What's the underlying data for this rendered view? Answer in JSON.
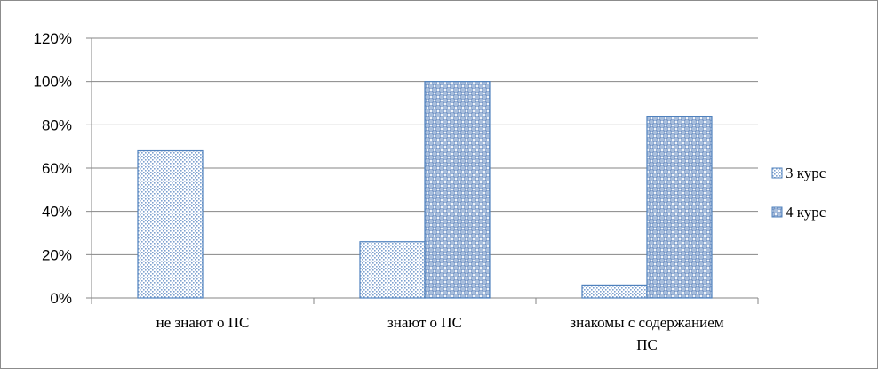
{
  "chart_data": {
    "type": "bar",
    "categories": [
      [
        "не знают о ПС"
      ],
      [
        "знают о ПС"
      ],
      [
        "знакомы с содержанием",
        "ПС"
      ]
    ],
    "series": [
      {
        "name": "3 курс",
        "values": [
          68,
          26,
          6
        ],
        "pattern": "dots"
      },
      {
        "name": "4 курс",
        "values": [
          0,
          100,
          84
        ],
        "pattern": "grid"
      }
    ],
    "ylim": [
      0,
      120
    ],
    "yticks": [
      "0%",
      "20%",
      "40%",
      "60%",
      "80%",
      "100%",
      "120%"
    ],
    "grid": true,
    "legend": "right",
    "colors": {
      "bar_border": "#4f81bd",
      "bar_fill": "#dce6f2",
      "pattern": "#4f81bd",
      "grid": "#868686"
    }
  }
}
